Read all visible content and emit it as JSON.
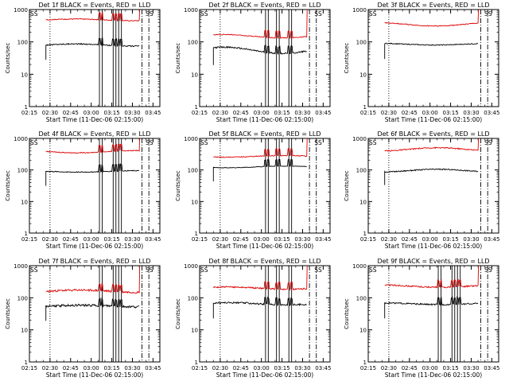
{
  "page": {
    "width": 640,
    "height": 480
  },
  "colors": {
    "events": "#000000",
    "lld": "#dd0000",
    "axes": "#000000",
    "background": "#ffffff"
  },
  "chart_data": [
    {
      "type": "line",
      "title": "Det 1f BLACK = Events, RED = LLD",
      "xlabel": "Start Time (11-Dec-06 02:15:00)",
      "ylabel": "Counts/sec",
      "yscale": "log",
      "ylim": [
        1,
        1000
      ],
      "xlim": [
        "02:15",
        "03:50"
      ],
      "xticks": [
        "02:15",
        "02:30",
        "02:45",
        "03:00",
        "03:15",
        "03:30",
        "03:45"
      ],
      "yticks": [
        "1",
        "10",
        "100",
        "1000"
      ],
      "data_start": "02:27",
      "data_end": "03:35",
      "series": [
        {
          "name": "BLACK = Events",
          "color": "#000000",
          "level": 80,
          "noise": 0.04,
          "wave": 0.08
        },
        {
          "name": "RED = LLD",
          "color": "#dd0000",
          "level": 480,
          "noise": 0.03,
          "wave": 0.06,
          "end_spike": 1000
        }
      ],
      "markers": {
        "dotted": [
          "02:30"
        ],
        "solid": [
          "02:15",
          "03:06",
          "03:08",
          "03:16",
          "03:18",
          "03:20",
          "03:22"
        ],
        "dashdot": [
          "03:37",
          "03:42"
        ],
        "labels": [
          {
            "text": "SS",
            "x": "02:15"
          },
          {
            "text": "SS",
            "x": "03:39"
          }
        ]
      }
    },
    {
      "type": "line",
      "title": "Det 2f BLACK = Events, RED = LLD",
      "xlabel": "Start Time (11-Dec-06 02:15:00)",
      "ylabel": "Counts/sec",
      "yscale": "log",
      "ylim": [
        1,
        1000
      ],
      "xlim": [
        "02:15",
        "03:50"
      ],
      "xticks": [
        "02:15",
        "02:30",
        "02:45",
        "03:00",
        "03:15",
        "03:30",
        "03:45"
      ],
      "yticks": [
        "1",
        "10",
        "100",
        "1000"
      ],
      "data_start": "02:25",
      "data_end": "03:33",
      "series": [
        {
          "name": "BLACK = Events",
          "color": "#000000",
          "level": 55,
          "noise": 0.05,
          "wave": 0.22
        },
        {
          "name": "RED = LLD",
          "color": "#dd0000",
          "level": 150,
          "noise": 0.03,
          "wave": 0.12,
          "end_spike": 1000
        }
      ],
      "markers": {
        "dotted": [
          "02:30"
        ],
        "solid": [
          "02:15",
          "03:03",
          "03:05",
          "03:11",
          "03:13",
          "03:20",
          "03:22"
        ],
        "dashdot": [
          "03:35",
          "03:40"
        ],
        "labels": [
          {
            "text": "SS",
            "x": "02:15"
          },
          {
            "text": "SS",
            "x": "03:38"
          }
        ]
      }
    },
    {
      "type": "line",
      "title": "Det 3f BLACK = Events, RED = LLD",
      "xlabel": "Start Time (11-Dec-06 02:15:00)",
      "ylabel": "Counts/sec",
      "yscale": "log",
      "ylim": [
        1,
        1000
      ],
      "xlim": [
        "02:15",
        "03:50"
      ],
      "xticks": [
        "02:15",
        "02:30",
        "02:45",
        "03:00",
        "03:15",
        "03:30",
        "03:45"
      ],
      "yticks": [
        "1",
        "10",
        "100",
        "1000"
      ],
      "data_start": "02:27",
      "data_end": "03:35",
      "series": [
        {
          "name": "BLACK = Events",
          "color": "#000000",
          "level": 85,
          "noise": 0.03,
          "wave": 0.06
        },
        {
          "name": "RED = LLD",
          "color": "#dd0000",
          "level": 350,
          "noise": 0.03,
          "wave": 0.12,
          "end_spike": 1000
        }
      ],
      "markers": {
        "dotted": [
          "02:30"
        ],
        "solid": [
          "02:15"
        ],
        "dashdot": [
          "03:37",
          "03:42"
        ],
        "labels": [
          {
            "text": "SS",
            "x": "02:15"
          },
          {
            "text": "SS",
            "x": "03:39"
          }
        ]
      }
    },
    {
      "type": "line",
      "title": "Det 4f BLACK = Events, RED = LLD",
      "xlabel": "Start Time (11-Dec-06 02:15:00)",
      "ylabel": "Counts/sec",
      "yscale": "log",
      "ylim": [
        1,
        1000
      ],
      "xlim": [
        "02:15",
        "03:50"
      ],
      "xticks": [
        "02:15",
        "02:30",
        "02:45",
        "03:00",
        "03:15",
        "03:30",
        "03:45"
      ],
      "yticks": [
        "1",
        "10",
        "100",
        "1000"
      ],
      "data_start": "02:27",
      "data_end": "03:35",
      "series": [
        {
          "name": "BLACK = Events",
          "color": "#000000",
          "level": 90,
          "noise": 0.03,
          "wave": 0.05
        },
        {
          "name": "RED = LLD",
          "color": "#dd0000",
          "level": 380,
          "noise": 0.03,
          "wave": 0.08,
          "end_spike": 1000
        }
      ],
      "markers": {
        "dotted": [
          "02:30"
        ],
        "solid": [
          "02:15",
          "03:06",
          "03:08",
          "03:16",
          "03:18",
          "03:20",
          "03:22"
        ],
        "dashdot": [
          "03:37",
          "03:42"
        ],
        "labels": [
          {
            "text": "SS",
            "x": "02:15"
          },
          {
            "text": "SS",
            "x": "03:39"
          }
        ]
      }
    },
    {
      "type": "line",
      "title": "Det 5f BLACK = Events, RED = LLD",
      "xlabel": "Start Time (11-Dec-06 02:15:00)",
      "ylabel": "Counts/sec",
      "yscale": "log",
      "ylim": [
        1,
        1000
      ],
      "xlim": [
        "02:15",
        "03:50"
      ],
      "xticks": [
        "02:15",
        "02:30",
        "02:45",
        "03:00",
        "03:15",
        "03:30",
        "03:45"
      ],
      "yticks": [
        "1",
        "10",
        "100",
        "1000"
      ],
      "data_start": "02:25",
      "data_end": "03:33",
      "series": [
        {
          "name": "BLACK = Events",
          "color": "#000000",
          "level": 125,
          "noise": 0.02,
          "wave": 0.06
        },
        {
          "name": "RED = LLD",
          "color": "#dd0000",
          "level": 270,
          "noise": 0.03,
          "wave": 0.06,
          "end_spike": 1000
        }
      ],
      "markers": {
        "dotted": [
          "02:30"
        ],
        "solid": [
          "02:15",
          "03:03",
          "03:05",
          "03:11",
          "03:13",
          "03:20",
          "03:22"
        ],
        "dashdot": [
          "03:35",
          "03:40"
        ],
        "labels": [
          {
            "text": "SS",
            "x": "02:15"
          },
          {
            "text": "SS",
            "x": "03:38"
          }
        ]
      }
    },
    {
      "type": "line",
      "title": "Det 6f BLACK = Events, RED = LLD",
      "xlabel": "Start Time (11-Dec-06 02:15:00)",
      "ylabel": "Counts/sec",
      "yscale": "log",
      "ylim": [
        1,
        1000
      ],
      "xlim": [
        "02:15",
        "03:50"
      ],
      "xticks": [
        "02:15",
        "02:30",
        "02:45",
        "03:00",
        "03:15",
        "03:30",
        "03:45"
      ],
      "yticks": [
        "1",
        "10",
        "100",
        "1000"
      ],
      "data_start": "02:27",
      "data_end": "03:35",
      "series": [
        {
          "name": "BLACK = Events",
          "color": "#000000",
          "level": 95,
          "noise": 0.04,
          "wave": 0.1
        },
        {
          "name": "RED = LLD",
          "color": "#dd0000",
          "level": 450,
          "noise": 0.04,
          "wave": 0.12,
          "end_spike": 1000
        }
      ],
      "markers": {
        "dotted": [
          "02:30"
        ],
        "solid": [
          "02:15"
        ],
        "dashdot": [
          "03:37",
          "03:42"
        ],
        "labels": [
          {
            "text": "SS",
            "x": "02:15"
          },
          {
            "text": "SS",
            "x": "03:39"
          }
        ]
      }
    },
    {
      "type": "line",
      "title": "Det 7f BLACK = Events, RED = LLD",
      "xlabel": "Start Time (11-Dec-06 02:15:00)",
      "ylabel": "Counts/sec",
      "yscale": "log",
      "ylim": [
        1,
        1000
      ],
      "xlim": [
        "02:15",
        "03:50"
      ],
      "xticks": [
        "02:15",
        "02:30",
        "02:45",
        "03:00",
        "03:15",
        "03:30",
        "03:45"
      ],
      "yticks": [
        "1",
        "10",
        "100",
        "1000"
      ],
      "data_start": "02:27",
      "data_end": "03:35",
      "series": [
        {
          "name": "BLACK = Events",
          "color": "#000000",
          "level": 55,
          "noise": 0.08,
          "wave": 0.06
        },
        {
          "name": "RED = LLD",
          "color": "#dd0000",
          "level": 160,
          "noise": 0.07,
          "wave": 0.08,
          "end_spike": 1000
        }
      ],
      "markers": {
        "dotted": [
          "02:30"
        ],
        "solid": [
          "02:15",
          "03:06",
          "03:08",
          "03:16",
          "03:18",
          "03:20",
          "03:22"
        ],
        "dashdot": [
          "03:37",
          "03:42"
        ],
        "labels": [
          {
            "text": "SS",
            "x": "02:15"
          },
          {
            "text": "SS",
            "x": "03:39"
          }
        ]
      }
    },
    {
      "type": "line",
      "title": "Det 8f BLACK = Events, RED = LLD",
      "xlabel": "Start Time (11-Dec-06 02:15:00)",
      "ylabel": "Counts/sec",
      "yscale": "log",
      "ylim": [
        1,
        1000
      ],
      "xlim": [
        "02:15",
        "03:50"
      ],
      "xticks": [
        "02:15",
        "02:30",
        "02:45",
        "03:00",
        "03:15",
        "03:30",
        "03:45"
      ],
      "yticks": [
        "1",
        "10",
        "100",
        "1000"
      ],
      "data_start": "02:25",
      "data_end": "03:33",
      "series": [
        {
          "name": "BLACK = Events",
          "color": "#000000",
          "level": 65,
          "noise": 0.06,
          "wave": 0.08
        },
        {
          "name": "RED = LLD",
          "color": "#dd0000",
          "level": 200,
          "noise": 0.05,
          "wave": 0.08,
          "end_spike": 1000
        }
      ],
      "markers": {
        "dotted": [
          "02:30"
        ],
        "solid": [
          "02:15",
          "03:03",
          "03:05",
          "03:11",
          "03:13",
          "03:20",
          "03:22"
        ],
        "dashdot": [
          "03:35",
          "03:40"
        ],
        "labels": [
          {
            "text": "SS",
            "x": "02:15"
          },
          {
            "text": "SS",
            "x": "03:38"
          }
        ]
      }
    },
    {
      "type": "line",
      "title": "Det 9f BLACK = Events, RED = LLD",
      "xlabel": "Start Time (11-Dec-06 02:15:00)",
      "ylabel": "Counts/sec",
      "yscale": "log",
      "ylim": [
        1,
        1000
      ],
      "xlim": [
        "02:15",
        "03:50"
      ],
      "xticks": [
        "02:15",
        "02:30",
        "02:45",
        "03:00",
        "03:15",
        "03:30",
        "03:45"
      ],
      "yticks": [
        "1",
        "10",
        "100",
        "1000"
      ],
      "data_start": "02:27",
      "data_end": "03:35",
      "series": [
        {
          "name": "BLACK = Events",
          "color": "#000000",
          "level": 65,
          "noise": 0.05,
          "wave": 0.06
        },
        {
          "name": "RED = LLD",
          "color": "#dd0000",
          "level": 230,
          "noise": 0.05,
          "wave": 0.08,
          "end_spike": 1000
        }
      ],
      "markers": {
        "dotted": [
          "02:30"
        ],
        "solid": [
          "02:15",
          "03:06",
          "03:08",
          "03:16",
          "03:18",
          "03:20",
          "03:22"
        ],
        "dashdot": [
          "03:37",
          "03:42"
        ],
        "labels": [
          {
            "text": "SS",
            "x": "02:15"
          },
          {
            "text": "SS",
            "x": "03:39"
          }
        ]
      }
    }
  ]
}
